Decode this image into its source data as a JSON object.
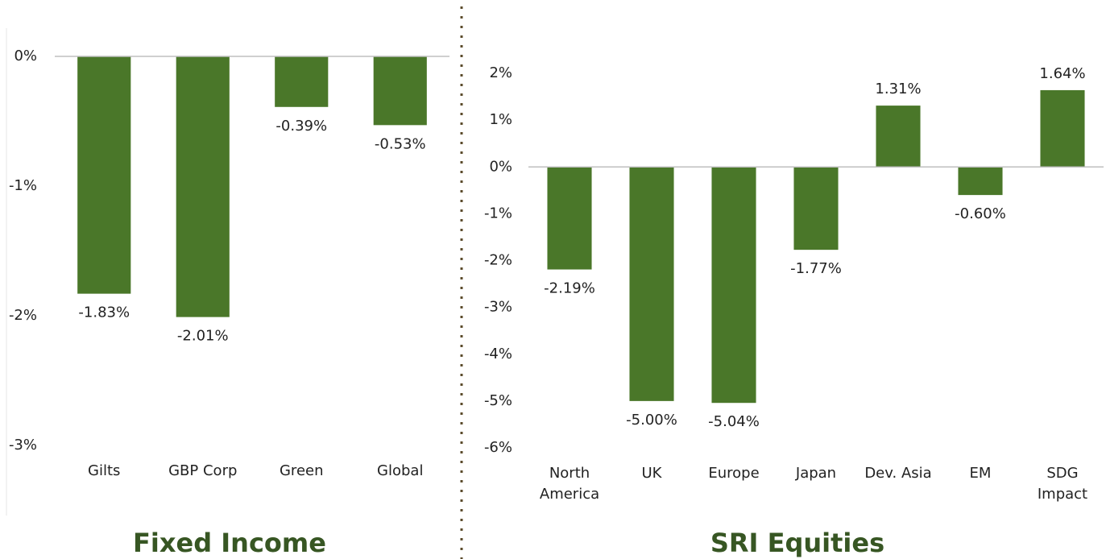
{
  "chart_data": [
    {
      "type": "bar",
      "title": "Fixed Income",
      "categories": [
        "Gilts",
        "GBP Corp",
        "Green",
        "Global"
      ],
      "values": [
        -1.83,
        -2.01,
        -0.39,
        -0.53
      ],
      "value_labels": [
        "-1.83%",
        "-2.01%",
        "-0.39%",
        "-0.53%"
      ],
      "color": "#4a7729",
      "ylim": [
        -3,
        0
      ],
      "yticks": [
        {
          "value": 0,
          "label": "0%"
        },
        {
          "value": -1,
          "label": "-1%"
        },
        {
          "value": -2,
          "label": "-2%"
        },
        {
          "value": -3,
          "label": "-3%"
        }
      ],
      "grid": false
    },
    {
      "type": "bar",
      "title": "SRI Equities",
      "categories": [
        "North America",
        "UK",
        "Europe",
        "Japan",
        "Dev. Asia",
        "EM",
        "SDG Impact"
      ],
      "values": [
        -2.19,
        -5.0,
        -5.04,
        -1.77,
        1.31,
        -0.6,
        1.64
      ],
      "value_labels": [
        "-2.19%",
        "-5.00%",
        "-5.04%",
        "-1.77%",
        "1.31%",
        "-0.60%",
        "1.64%"
      ],
      "color": "#4a7729",
      "ylim": [
        -6,
        2
      ],
      "yticks": [
        {
          "value": 2,
          "label": "2%"
        },
        {
          "value": 1,
          "label": "1%"
        },
        {
          "value": 0,
          "label": "0%"
        },
        {
          "value": -1,
          "label": "-1%"
        },
        {
          "value": -2,
          "label": "-2%"
        },
        {
          "value": -3,
          "label": "-3%"
        },
        {
          "value": -4,
          "label": "-4%"
        },
        {
          "value": -5,
          "label": "-5%"
        },
        {
          "value": -6,
          "label": "-6%"
        }
      ],
      "grid": false
    }
  ]
}
